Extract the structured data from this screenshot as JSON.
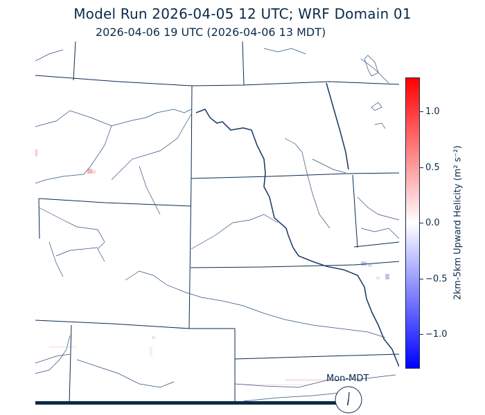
{
  "header": {
    "title": "Model Run 2026-04-05 12 UTC; WRF Domain 01",
    "valid_time": "2026-04-06 19 UTC  (2026-04-06 13 MDT)"
  },
  "colorbar": {
    "label": "2km-5km Upward Helicity (m² s⁻²)",
    "ticks": [
      "1.0",
      "0.5",
      "0.0",
      "−0.5",
      "−1.0"
    ],
    "range": [
      -1.3,
      1.3
    ],
    "colors": {
      "max": "#ff0000",
      "mid": "#ffffff",
      "min": "#0000ff"
    }
  },
  "clock": {
    "label": "Mon-MDT",
    "time": "13:00"
  },
  "map": {
    "boundary_color": "#0b2a4a",
    "river_color": "#1f3f66"
  }
}
